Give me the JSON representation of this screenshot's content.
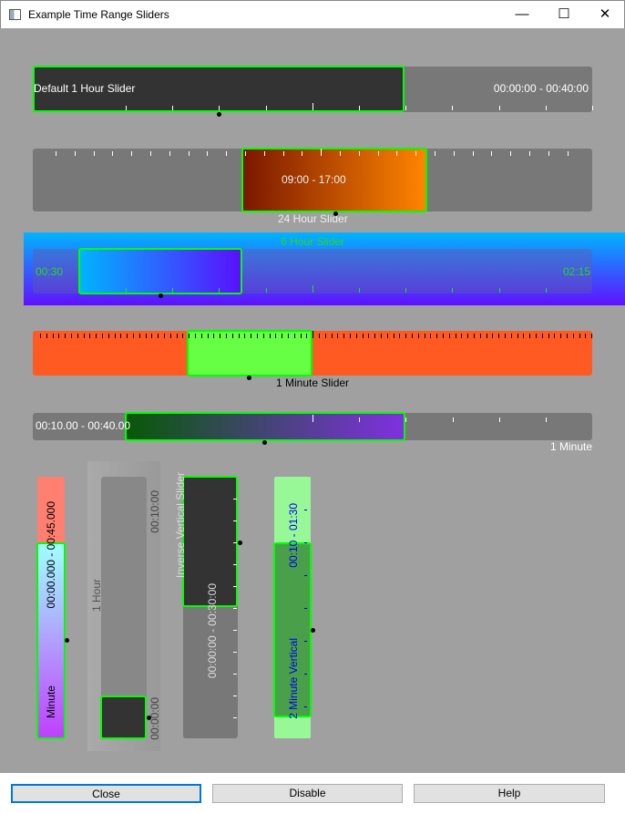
{
  "window": {
    "title": "Example Time Range Sliders",
    "minimize_icon": "minimize-icon",
    "maximize_icon": "maximize-icon",
    "close_icon": "close-icon"
  },
  "sliders": {
    "s1": {
      "label": "Default 1 Hour Slider",
      "range": "00:00:00 - 00:40:00"
    },
    "s2": {
      "label": "24 Hour Slider",
      "range": "09:00 - 17:00",
      "colors": [
        "#7a1800",
        "#ff8400"
      ]
    },
    "s3": {
      "label": "6 Hour Slider",
      "start": "00:30",
      "end": "02:15",
      "accent": "#22dd22"
    },
    "s4": {
      "label": "1 Minute Slider",
      "track_color": "#ff5a22",
      "handle_color": "#66ff44"
    },
    "s5": {
      "label": "1 Minute",
      "range": "00:10.00 - 00:40.00"
    },
    "v1": {
      "label": "Minute",
      "range": "00:00.000 - 00:45.000"
    },
    "v2": {
      "label": "1 Hour",
      "top": "00:10:00",
      "bottom": "00:00:00"
    },
    "v3": {
      "label": "Inverse Vertical Slider",
      "range": "00:00:00 - 00:30:00"
    },
    "v4": {
      "label": "2 Minute Vertical",
      "range": "00:10 - 01:30"
    }
  },
  "buttons": {
    "close": "Close",
    "disable": "Disable",
    "help": "Help"
  }
}
